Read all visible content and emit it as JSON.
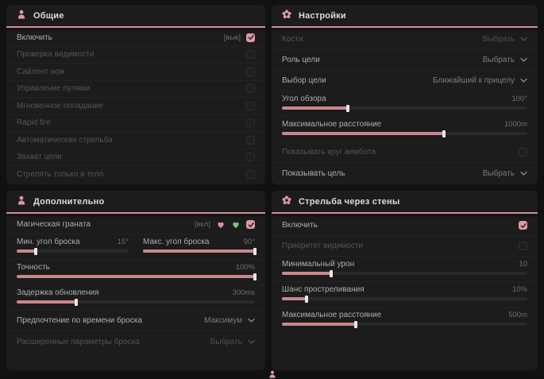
{
  "theme": {
    "accent": "#d28e93",
    "checkbox_checked": "#dd9aa0",
    "slider_fill": "#c9878d",
    "accent_green": "#79c27f",
    "panel_bg": "#1c1c1d",
    "page_bg": "#111112"
  },
  "panels": {
    "general": {
      "title": "Общие",
      "icon": "person-icon",
      "rows": [
        {
          "label": "Включить",
          "control": "checkbox",
          "checked": true,
          "state_text": "[вык]",
          "enabled": true
        },
        {
          "label": "Проверка видимости",
          "control": "checkbox",
          "checked": false,
          "enabled": false
        },
        {
          "label": "Сайлент нож",
          "control": "checkbox",
          "checked": false,
          "enabled": false
        },
        {
          "label": "Управление пулями",
          "control": "checkbox",
          "checked": false,
          "enabled": false
        },
        {
          "label": "Мгновенное попадание",
          "control": "checkbox",
          "checked": false,
          "enabled": false
        },
        {
          "label": "Rapid fire",
          "control": "checkbox",
          "checked": false,
          "enabled": false
        },
        {
          "label": "Автоматическая стрельба",
          "control": "checkbox",
          "checked": false,
          "enabled": false
        },
        {
          "label": "Захват цели",
          "control": "checkbox",
          "checked": false,
          "enabled": false
        },
        {
          "label": "Стрелять только в тело",
          "control": "checkbox",
          "checked": false,
          "enabled": false
        }
      ]
    },
    "settings": {
      "title": "Настройки",
      "icon": "flower-icon",
      "rows": [
        {
          "label": "Кости",
          "control": "dropdown",
          "value": "Выбрать",
          "enabled": false
        },
        {
          "label": "Роль цели",
          "control": "dropdown",
          "value": "Выбрать",
          "enabled": true
        },
        {
          "label": "Выбор цели",
          "control": "dropdown",
          "value": "Ближайший к прицелу",
          "enabled": true
        },
        {
          "label": "Угол обзора",
          "control": "slider",
          "value": "100°",
          "fill_pct": 27
        },
        {
          "label": "Максимальное расстояние",
          "control": "slider",
          "value": "1000m",
          "fill_pct": 66
        },
        {
          "label": "Показывать круг аимбота",
          "control": "checkbox",
          "checked": false,
          "enabled": false
        },
        {
          "label": "Показывать цель",
          "control": "dropdown",
          "value": "Выбрать",
          "enabled": true
        }
      ]
    },
    "additional": {
      "title": "Дополнительно",
      "icon": "person-icon",
      "grenade": {
        "label": "Магическая граната",
        "state_text": "[вкл]",
        "badges": [
          "heart-pink-icon",
          "heart-green-icon"
        ],
        "checked": true
      },
      "pair": [
        {
          "label": "Мин. угол броска",
          "value": "15°",
          "fill_pct": 17
        },
        {
          "label": "Макс. угол броска",
          "value": "90°",
          "fill_pct": 100
        }
      ],
      "sliders": [
        {
          "label": "Точность",
          "value": "100%",
          "fill_pct": 100
        },
        {
          "label": "Задержка обновления",
          "value": "300ms",
          "fill_pct": 25
        }
      ],
      "dropdowns": [
        {
          "label": "Предпочтение по времени броска",
          "value": "Максимум",
          "enabled": true
        },
        {
          "label": "Расширенные параметры броска",
          "value": "Выбрать",
          "enabled": false
        }
      ]
    },
    "wallbang": {
      "title": "Стрельба через стены",
      "icon": "flower-icon",
      "rows": [
        {
          "label": "Включить",
          "control": "checkbox",
          "checked": true,
          "enabled": true
        },
        {
          "label": "Приоритет видимости",
          "control": "checkbox",
          "checked": false,
          "enabled": false
        },
        {
          "label": "Минимальный урон",
          "control": "slider",
          "value": "10",
          "fill_pct": 20
        },
        {
          "label": "Шанс простреливания",
          "control": "slider",
          "value": "10%",
          "fill_pct": 10
        },
        {
          "label": "Максимальное расстояние",
          "control": "slider",
          "value": "500m",
          "fill_pct": 30
        }
      ]
    }
  }
}
